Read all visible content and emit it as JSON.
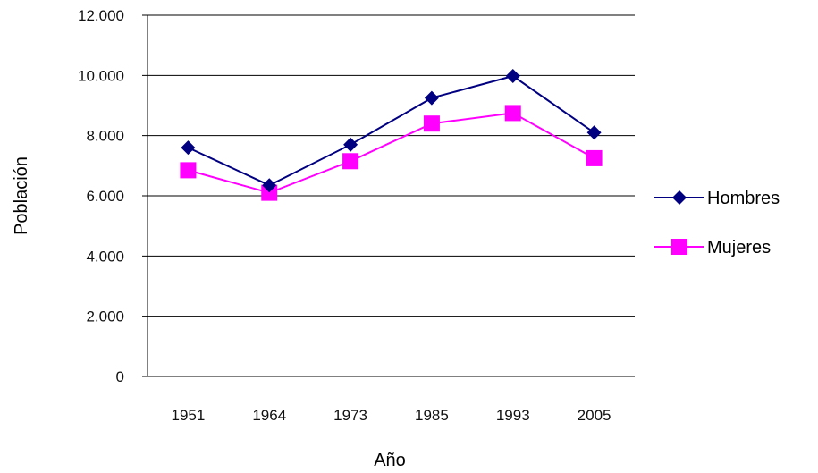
{
  "chart_data": {
    "type": "line",
    "categories": [
      "1951",
      "1964",
      "1973",
      "1985",
      "1993",
      "2005"
    ],
    "series": [
      {
        "name": "Hombres",
        "values": [
          7600,
          6350,
          7700,
          9250,
          9980,
          8100
        ],
        "color": "#000080",
        "marker": "diamond"
      },
      {
        "name": "Mujeres",
        "values": [
          6850,
          6100,
          7150,
          8400,
          8750,
          7250
        ],
        "color": "#ff00ff",
        "marker": "square"
      }
    ],
    "xlabel": "Año",
    "ylabel": "Población",
    "ylim": [
      0,
      12000
    ],
    "yticks": [
      "0",
      "2.000",
      "4.000",
      "6.000",
      "8.000",
      "10.000",
      "12.000"
    ],
    "ytick_values": [
      0,
      2000,
      4000,
      6000,
      8000,
      10000,
      12000
    ],
    "grid": true,
    "legend_position": "right"
  }
}
